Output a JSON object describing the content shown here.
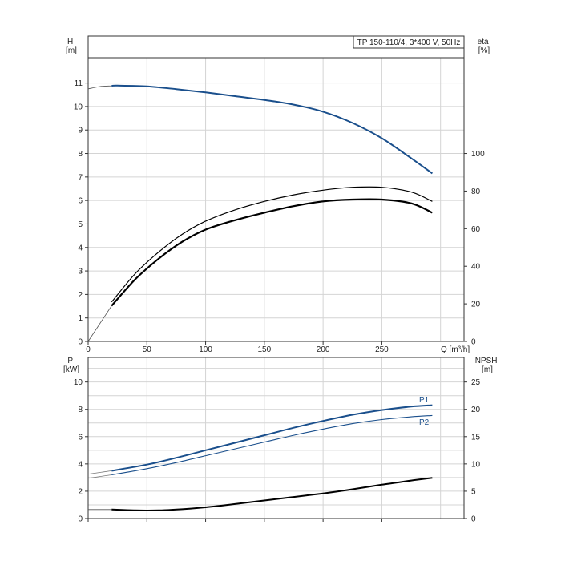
{
  "chart_data": [
    {
      "type": "line",
      "title": "TP 150-110/4, 3*400 V, 50Hz",
      "xlabel": "Q [m³/h]",
      "ylabel": "H\n[m]",
      "ylabel_right": "eta\n[%]",
      "xlim": [
        0,
        320
      ],
      "ylim": [
        0,
        13
      ],
      "ylim_right": [
        0,
        162.5
      ],
      "x_ticks": [
        0,
        50,
        100,
        150,
        200,
        250
      ],
      "y_ticks": [
        0,
        1,
        2,
        3,
        4,
        5,
        6,
        7,
        8,
        9,
        10,
        11
      ],
      "y_ticks_right": [
        0,
        20,
        40,
        60,
        80,
        100
      ],
      "grid": true,
      "series": [
        {
          "axis": "left",
          "color": "#1a4f8c",
          "x": [
            20,
            25,
            50,
            75,
            100,
            125,
            150,
            175,
            200,
            225,
            250,
            275,
            293
          ],
          "y": [
            10.88,
            10.89,
            10.86,
            10.74,
            10.6,
            10.44,
            10.28,
            10.08,
            9.78,
            9.3,
            8.65,
            7.8,
            7.15
          ]
        },
        {
          "axis": "right",
          "color": "#000000",
          "x": [
            20,
            40,
            60,
            80,
            100,
            125,
            150,
            175,
            200,
            225,
            250,
            275,
            293
          ],
          "y": [
            19,
            33,
            44,
            53,
            59.5,
            64.5,
            68.5,
            72,
            74.5,
            75.5,
            75.5,
            73.5,
            68.5
          ]
        },
        {
          "axis": "right",
          "color": "#000000",
          "x": [
            20,
            40,
            60,
            80,
            100,
            125,
            150,
            175,
            200,
            225,
            250,
            275,
            293
          ],
          "y": [
            21,
            36,
            47.5,
            57,
            64,
            70,
            74.5,
            78,
            80.5,
            82,
            82,
            79.5,
            74.5
          ]
        }
      ]
    },
    {
      "type": "line",
      "xlabel": "",
      "ylabel": "P\n[kW]",
      "ylabel_right": "NPSH\n[m]",
      "xlim": [
        0,
        320
      ],
      "ylim": [
        0,
        11.8
      ],
      "ylim_right": [
        0,
        29.5
      ],
      "y_ticks": [
        0,
        2,
        4,
        6,
        8,
        10
      ],
      "y_ticks_right": [
        0,
        5,
        10,
        15,
        20,
        25
      ],
      "grid": true,
      "series": [
        {
          "name": "P1",
          "axis": "left",
          "color": "#1a4f8c",
          "x": [
            20,
            50,
            75,
            100,
            125,
            150,
            175,
            200,
            225,
            250,
            275,
            293
          ],
          "y": [
            3.5,
            3.95,
            4.45,
            5.0,
            5.55,
            6.1,
            6.65,
            7.15,
            7.6,
            7.95,
            8.2,
            8.3
          ]
        },
        {
          "name": "P2",
          "axis": "left",
          "color": "#1a4f8c",
          "x": [
            20,
            50,
            75,
            100,
            125,
            150,
            175,
            200,
            225,
            250,
            275,
            293
          ],
          "y": [
            3.2,
            3.65,
            4.1,
            4.6,
            5.1,
            5.6,
            6.1,
            6.55,
            6.95,
            7.25,
            7.45,
            7.55
          ]
        },
        {
          "axis": "right",
          "color": "#000000",
          "x": [
            20,
            40,
            60,
            80,
            100,
            125,
            150,
            175,
            200,
            225,
            250,
            275,
            293
          ],
          "y": [
            1.65,
            1.5,
            1.5,
            1.7,
            2.05,
            2.65,
            3.3,
            3.95,
            4.6,
            5.35,
            6.2,
            6.95,
            7.45
          ]
        }
      ]
    }
  ]
}
